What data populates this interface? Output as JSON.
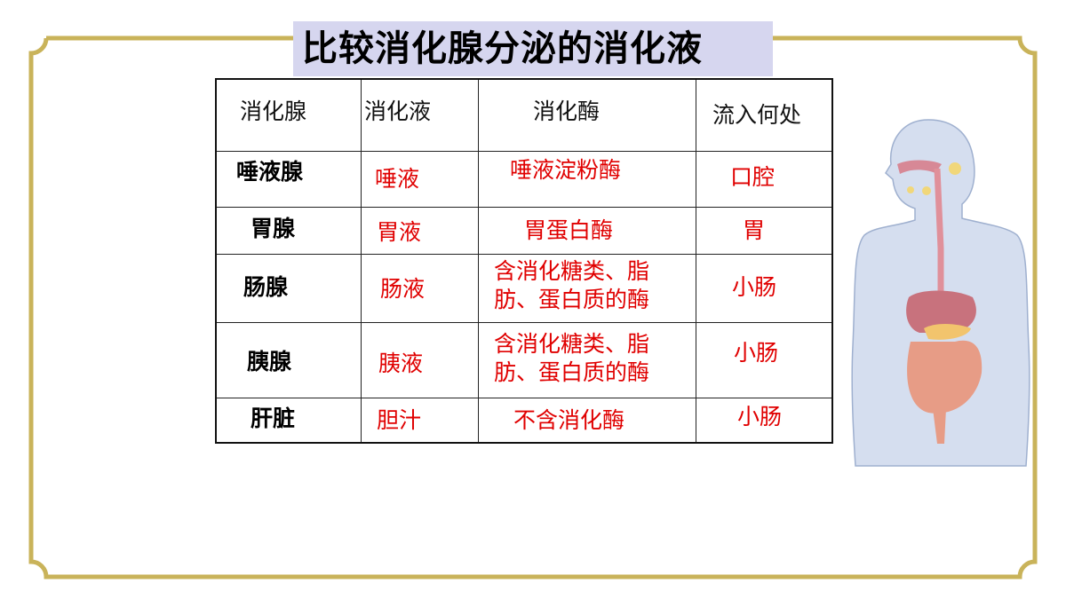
{
  "title": "比较消化腺分泌的消化液",
  "colors": {
    "frame": "#c9b35a",
    "title_bg": "#d6d6ef",
    "answer": "#e00000"
  },
  "table": {
    "headers": [
      "消化腺",
      "消化液",
      "消化酶",
      "流入何处"
    ],
    "rows": [
      {
        "gland": "唾液腺",
        "juice": "唾液",
        "enzyme": "唾液淀粉酶",
        "destination": "口腔"
      },
      {
        "gland": "胃腺",
        "juice": "胃液",
        "enzyme": "胃蛋白酶",
        "destination": "胃"
      },
      {
        "gland": "肠腺",
        "juice": "肠液",
        "enzyme": "含消化糖类、脂肪、蛋白质的酶",
        "destination": "小肠"
      },
      {
        "gland": "胰腺",
        "juice": "胰液",
        "enzyme": "含消化糖类、脂肪、蛋白质的酶",
        "destination": "小肠"
      },
      {
        "gland": "肝脏",
        "juice": "胆汁",
        "enzyme": "不含消化酶",
        "destination": "小肠"
      }
    ]
  },
  "illustration": "human-digestive-system"
}
